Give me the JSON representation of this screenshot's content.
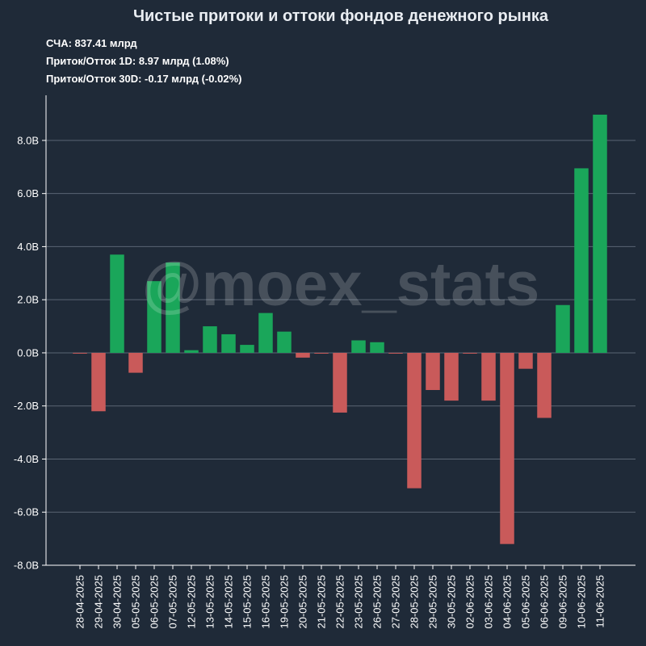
{
  "chart_data": {
    "type": "bar",
    "title": "Чистые притоки и оттоки фондов денежного рынка",
    "info_lines": [
      "СЧА: 837.41 млрд",
      "Приток/Отток 1D: 8.97 млрд (1.08%)",
      "Приток/Отток 30D: -0.17 млрд (-0.02%)"
    ],
    "watermark": "@moex_stats",
    "categories": [
      "28-04-2025",
      "29-04-2025",
      "30-04-2025",
      "05-05-2025",
      "06-05-2025",
      "07-05-2025",
      "12-05-2025",
      "13-05-2025",
      "14-05-2025",
      "15-05-2025",
      "16-05-2025",
      "19-05-2025",
      "20-05-2025",
      "21-05-2025",
      "22-05-2025",
      "23-05-2025",
      "26-05-2025",
      "27-05-2025",
      "28-05-2025",
      "29-05-2025",
      "30-05-2025",
      "02-06-2025",
      "03-06-2025",
      "04-06-2025",
      "05-06-2025",
      "06-06-2025",
      "09-06-2025",
      "10-06-2025",
      "11-06-2025"
    ],
    "values": [
      -0.03,
      -2.2,
      3.7,
      -0.75,
      2.7,
      3.4,
      0.1,
      1.0,
      0.7,
      0.3,
      1.5,
      0.8,
      -0.18,
      -0.02,
      -2.25,
      0.47,
      0.4,
      -0.02,
      -5.1,
      -1.4,
      -1.8,
      -0.02,
      -1.8,
      -7.2,
      -0.6,
      -2.45,
      1.8,
      6.95,
      8.97
    ],
    "y_ticks": [
      -8,
      -6,
      -4,
      -2,
      0,
      2,
      4,
      6,
      8
    ],
    "y_tick_labels": [
      "-8.0B",
      "-6.0B",
      "-4.0B",
      "-2.0B",
      "0.0B",
      "2.0B",
      "4.0B",
      "6.0B",
      "8.0B"
    ],
    "ylim": [
      -8.0,
      9.7
    ],
    "xlabel": "",
    "ylabel": "",
    "grid": true,
    "colors": {
      "positive": "#1aa65a",
      "negative": "#c95a5a",
      "background": "#1f2a38",
      "grid": "#5a6573",
      "axis": "#ffffff"
    }
  }
}
